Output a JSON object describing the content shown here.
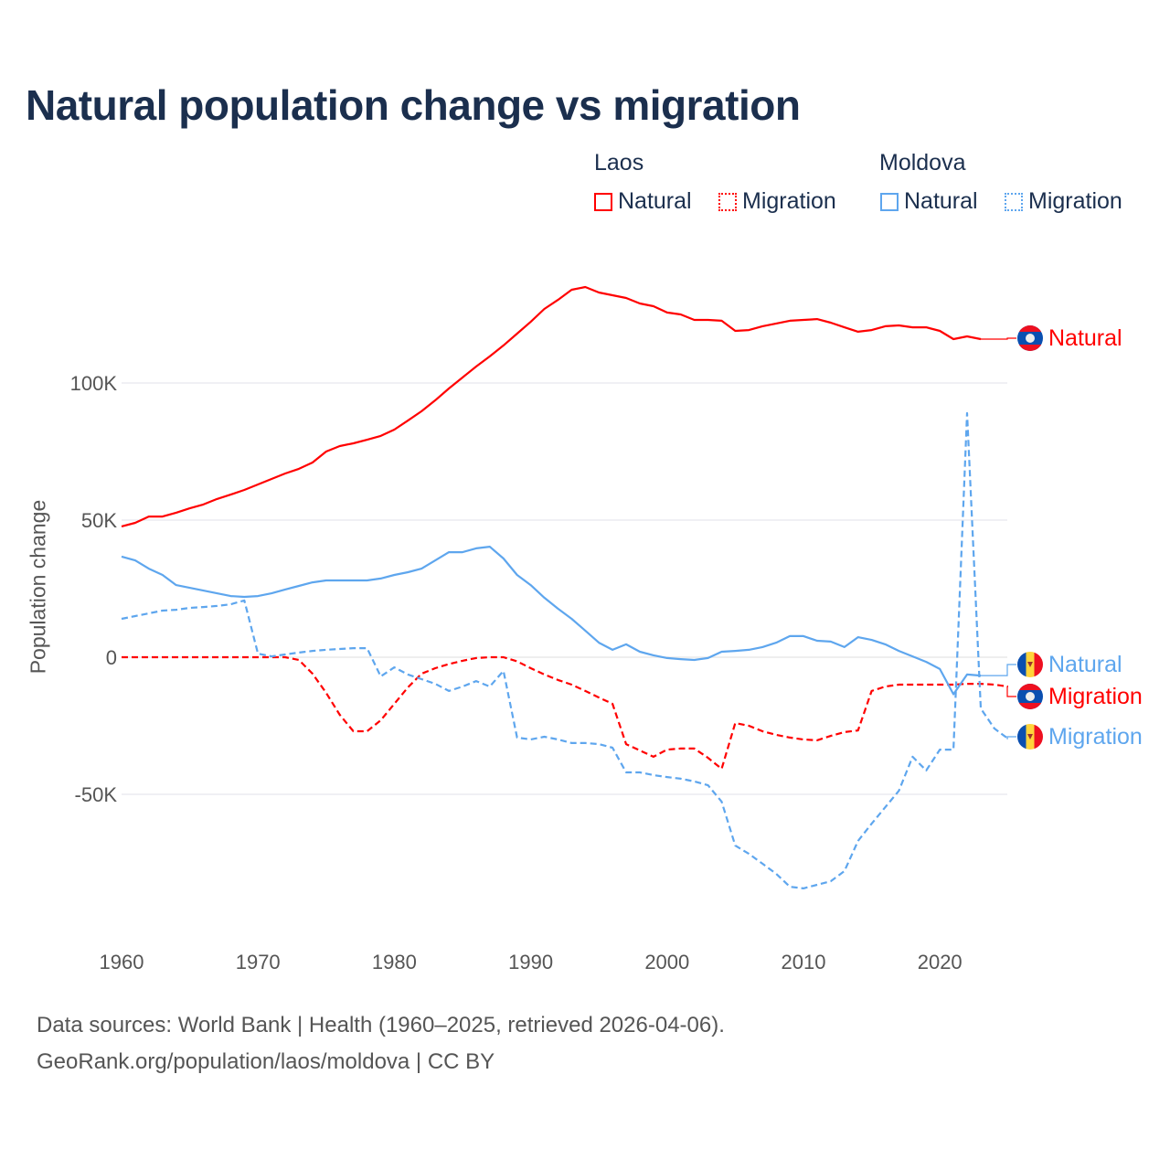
{
  "title": "Natural population change vs migration",
  "legend": {
    "groups": [
      {
        "name": "Laos",
        "items": [
          {
            "label": "Natural",
            "style": "solid"
          },
          {
            "label": "Migration",
            "style": "dotted"
          }
        ],
        "color": "#ff0000"
      },
      {
        "name": "Moldova",
        "items": [
          {
            "label": "Natural",
            "style": "solid"
          },
          {
            "label": "Migration",
            "style": "dotted"
          }
        ],
        "color": "#5ea6ee"
      }
    ]
  },
  "footer": {
    "line1": "Data sources: World Bank | Health (1960–2025, retrieved 2026-04-06).",
    "line2": "GeoRank.org/population/laos/moldova | CC BY"
  },
  "chart_data": {
    "type": "line",
    "title": "Natural population change vs migration",
    "xlabel": "",
    "ylabel": "Population change",
    "xlim": [
      1960,
      2025
    ],
    "ylim": [
      -100000,
      140000
    ],
    "x_ticks": [
      1960,
      1970,
      1980,
      1990,
      2000,
      2010,
      2020
    ],
    "y_ticks": [
      {
        "value": -50000,
        "label": "-50K"
      },
      {
        "value": 0,
        "label": "0"
      },
      {
        "value": 50000,
        "label": "50K"
      },
      {
        "value": 100000,
        "label": "100K"
      }
    ],
    "grid": true,
    "series": [
      {
        "name": "Laos Natural",
        "country": "Laos",
        "end_label": "Natural",
        "color": "#ff0000",
        "dash": false,
        "start_year": 1960,
        "values": [
          47700,
          49000,
          51300,
          51300,
          52700,
          54300,
          55700,
          57700,
          59300,
          61000,
          63000,
          65000,
          67000,
          68700,
          71000,
          75000,
          77000,
          78000,
          79300,
          80700,
          83000,
          86300,
          89700,
          93700,
          98000,
          102000,
          106000,
          109700,
          113700,
          118000,
          122300,
          127000,
          130300,
          134000,
          135000,
          133000,
          132000,
          131000,
          129000,
          128000,
          125700,
          125000,
          123000,
          123000,
          122700,
          119000,
          119300,
          120700,
          121700,
          122700,
          123000,
          123300,
          122000,
          120300,
          118700,
          119300,
          120700,
          121000,
          120300,
          120300,
          119000,
          116000,
          117000,
          116000
        ]
      },
      {
        "name": "Laos Migration",
        "country": "Laos",
        "end_label": "Migration",
        "color": "#ff0000",
        "dash": true,
        "start_year": 1960,
        "values": [
          0,
          0,
          0,
          0,
          0,
          0,
          0,
          0,
          0,
          0,
          0,
          0,
          0,
          -1000,
          -6000,
          -13000,
          -21000,
          -27000,
          -27000,
          -23000,
          -17000,
          -11000,
          -6000,
          -4000,
          -2500,
          -1300,
          -300,
          0,
          0,
          -1500,
          -4000,
          -6300,
          -8300,
          -10000,
          -12300,
          -14700,
          -17000,
          -31700,
          -34000,
          -36300,
          -33700,
          -33300,
          -33300,
          -36700,
          -40700,
          -24000,
          -25000,
          -27000,
          -28300,
          -29300,
          -30000,
          -30300,
          -28700,
          -27300,
          -26700,
          -12300,
          -10700,
          -10000,
          -10000,
          -10000,
          -10000,
          -10000,
          -9700,
          -9700,
          -10000,
          -10700
        ]
      },
      {
        "name": "Moldova Natural",
        "country": "Moldova",
        "end_label": "Natural",
        "color": "#5ea6ee",
        "dash": false,
        "start_year": 1960,
        "values": [
          36700,
          35300,
          32300,
          30000,
          26300,
          25300,
          24300,
          23300,
          22300,
          22000,
          22300,
          23300,
          24700,
          26000,
          27300,
          28000,
          28000,
          28000,
          28000,
          28700,
          30000,
          31000,
          32300,
          35300,
          38300,
          38300,
          39700,
          40300,
          36000,
          30000,
          26300,
          21700,
          17700,
          14000,
          9700,
          5300,
          2700,
          4700,
          2000,
          700,
          -300,
          -700,
          -1000,
          -300,
          2000,
          2300,
          2700,
          3700,
          5300,
          7700,
          7700,
          6000,
          5700,
          3700,
          7300,
          6300,
          4700,
          2300,
          300,
          -1700,
          -4300,
          -13500,
          -6300,
          -6700
        ]
      },
      {
        "name": "Moldova Migration",
        "country": "Moldova",
        "end_label": "Migration",
        "color": "#5ea6ee",
        "dash": true,
        "start_year": 1960,
        "values": [
          14000,
          15000,
          16000,
          17000,
          17300,
          18000,
          18300,
          18700,
          19300,
          20700,
          1300,
          300,
          1000,
          1700,
          2300,
          2700,
          3000,
          3300,
          3300,
          -7000,
          -3700,
          -6300,
          -8000,
          -9700,
          -12300,
          -10700,
          -8700,
          -10700,
          -5000,
          -29300,
          -30000,
          -29000,
          -30000,
          -31300,
          -31300,
          -31700,
          -33000,
          -42000,
          -42000,
          -43000,
          -43700,
          -44300,
          -45300,
          -46700,
          -52700,
          -68700,
          -71700,
          -75300,
          -79000,
          -83700,
          -84300,
          -83000,
          -81700,
          -78000,
          -67000,
          -60700,
          -54700,
          -48700,
          -36300,
          -41300,
          -33700,
          -33700,
          89000,
          -18700,
          -26000,
          -29700
        ]
      }
    ]
  }
}
